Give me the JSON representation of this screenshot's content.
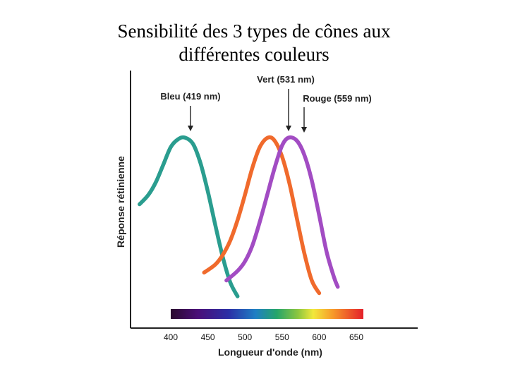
{
  "slide": {
    "title_line1": "Sensibilité des 3 types de cônes aux",
    "title_line2": "différentes couleurs"
  },
  "chart_data": {
    "type": "line",
    "title": "Sensibilité des 3 types de cônes aux différentes couleurs",
    "xlabel": "Longueur d'onde (nm)",
    "ylabel": "Réponse rétinienne",
    "xlim": [
      380,
      670
    ],
    "ylim": [
      0,
      1
    ],
    "x_ticks": [
      400,
      450,
      500,
      550,
      600,
      650
    ],
    "y_ticks": [],
    "grid": false,
    "legend": "none",
    "spectrum_bar": true,
    "series": [
      {
        "name": "Bleu (419 nm)",
        "label": "Bleu (419 nm)",
        "peak": 419,
        "color": "#2a9d8f",
        "x": [
          358,
          370,
          380,
          390,
          400,
          410,
          419,
          430,
          440,
          450,
          460,
          470,
          480,
          490
        ],
        "y": [
          0.58,
          0.64,
          0.72,
          0.83,
          0.94,
          0.99,
          1.0,
          0.96,
          0.84,
          0.66,
          0.45,
          0.25,
          0.09,
          0.0
        ]
      },
      {
        "name": "Vert (531 nm)",
        "label": "Vert (531 nm)",
        "peak": 531,
        "color": "#f06a2c",
        "x": [
          445,
          460,
          470,
          480,
          490,
          500,
          510,
          520,
          531,
          540,
          550,
          560,
          570,
          580,
          590,
          600
        ],
        "y": [
          0.15,
          0.2,
          0.26,
          0.35,
          0.48,
          0.64,
          0.81,
          0.94,
          1.0,
          0.98,
          0.88,
          0.71,
          0.49,
          0.27,
          0.1,
          0.02
        ]
      },
      {
        "name": "Rouge (559 nm)",
        "label": "Rouge (559 nm)",
        "peak": 559,
        "color": "#a24cc3",
        "x": [
          475,
          490,
          500,
          510,
          520,
          530,
          540,
          550,
          559,
          570,
          580,
          590,
          600,
          610,
          620,
          625
        ],
        "y": [
          0.1,
          0.16,
          0.22,
          0.32,
          0.47,
          0.64,
          0.81,
          0.95,
          1.0,
          0.98,
          0.89,
          0.73,
          0.51,
          0.28,
          0.12,
          0.06
        ]
      }
    ]
  }
}
